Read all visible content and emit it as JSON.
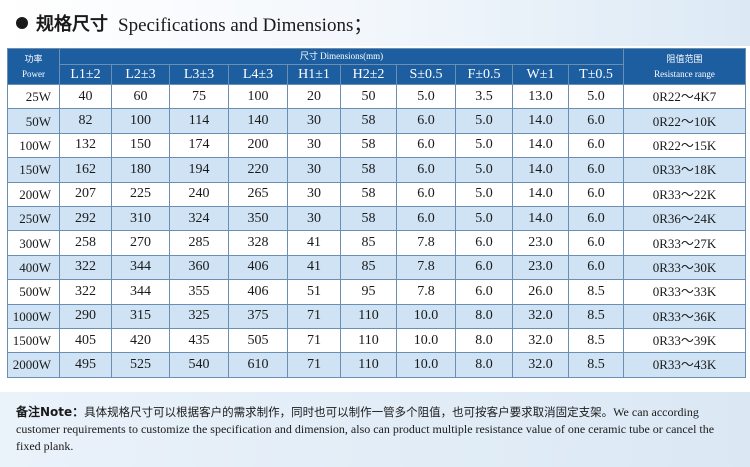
{
  "header": {
    "title_cn": "规格尺寸",
    "title_en": "Specifications and Dimensions；"
  },
  "table": {
    "power_label_cn": "功率",
    "power_label_en": "Power",
    "dimensions_label": "尺寸 Dimensions(mm)",
    "resistance_label_cn": "阻值范围",
    "resistance_label_en": "Resistance range",
    "columns": [
      "L1±2",
      "L2±3",
      "L3±3",
      "L4±3",
      "H1±1",
      "H2±2",
      "S±0.5",
      "F±0.5",
      "W±1",
      "T±0.5"
    ],
    "rows": [
      {
        "power": "25W",
        "values": [
          "40",
          "60",
          "75",
          "100",
          "20",
          "50",
          "5.0",
          "3.5",
          "13.0",
          "5.0"
        ],
        "range": "0R22～4K7"
      },
      {
        "power": "50W",
        "values": [
          "82",
          "100",
          "114",
          "140",
          "30",
          "58",
          "6.0",
          "5.0",
          "14.0",
          "6.0"
        ],
        "range": "0R22～10K"
      },
      {
        "power": "100W",
        "values": [
          "132",
          "150",
          "174",
          "200",
          "30",
          "58",
          "6.0",
          "5.0",
          "14.0",
          "6.0"
        ],
        "range": "0R22～15K"
      },
      {
        "power": "150W",
        "values": [
          "162",
          "180",
          "194",
          "220",
          "30",
          "58",
          "6.0",
          "5.0",
          "14.0",
          "6.0"
        ],
        "range": "0R33～18K"
      },
      {
        "power": "200W",
        "values": [
          "207",
          "225",
          "240",
          "265",
          "30",
          "58",
          "6.0",
          "5.0",
          "14.0",
          "6.0"
        ],
        "range": "0R33～22K"
      },
      {
        "power": "250W",
        "values": [
          "292",
          "310",
          "324",
          "350",
          "30",
          "58",
          "6.0",
          "5.0",
          "14.0",
          "6.0"
        ],
        "range": "0R36～24K"
      },
      {
        "power": "300W",
        "values": [
          "258",
          "270",
          "285",
          "328",
          "41",
          "85",
          "7.8",
          "6.0",
          "23.0",
          "6.0"
        ],
        "range": "0R33～27K"
      },
      {
        "power": "400W",
        "values": [
          "322",
          "344",
          "360",
          "406",
          "41",
          "85",
          "7.8",
          "6.0",
          "23.0",
          "6.0"
        ],
        "range": "0R33～30K"
      },
      {
        "power": "500W",
        "values": [
          "322",
          "344",
          "355",
          "406",
          "51",
          "95",
          "7.8",
          "6.0",
          "26.0",
          "8.5"
        ],
        "range": "0R33～33K"
      },
      {
        "power": "1000W",
        "values": [
          "290",
          "315",
          "325",
          "375",
          "71",
          "110",
          "10.0",
          "8.0",
          "32.0",
          "8.5"
        ],
        "range": "0R33～36K"
      },
      {
        "power": "1500W",
        "values": [
          "405",
          "420",
          "435",
          "505",
          "71",
          "110",
          "10.0",
          "8.0",
          "32.0",
          "8.5"
        ],
        "range": "0R33～39K"
      },
      {
        "power": "2000W",
        "values": [
          "495",
          "525",
          "540",
          "610",
          "71",
          "110",
          "10.0",
          "8.0",
          "32.0",
          "8.5"
        ],
        "range": "0R33～43K"
      }
    ]
  },
  "note": {
    "label": "备注Note：",
    "text_cn": "具体规格尺寸可以根据客户的需求制作，同时也可以制作一管多个阻值，也可按客户要求取消固定支架。",
    "text_en": "We can according customer requirements to customize the specification and dimension, also can product multiple resistance value of one ceramic tube or cancel the fixed plank."
  }
}
